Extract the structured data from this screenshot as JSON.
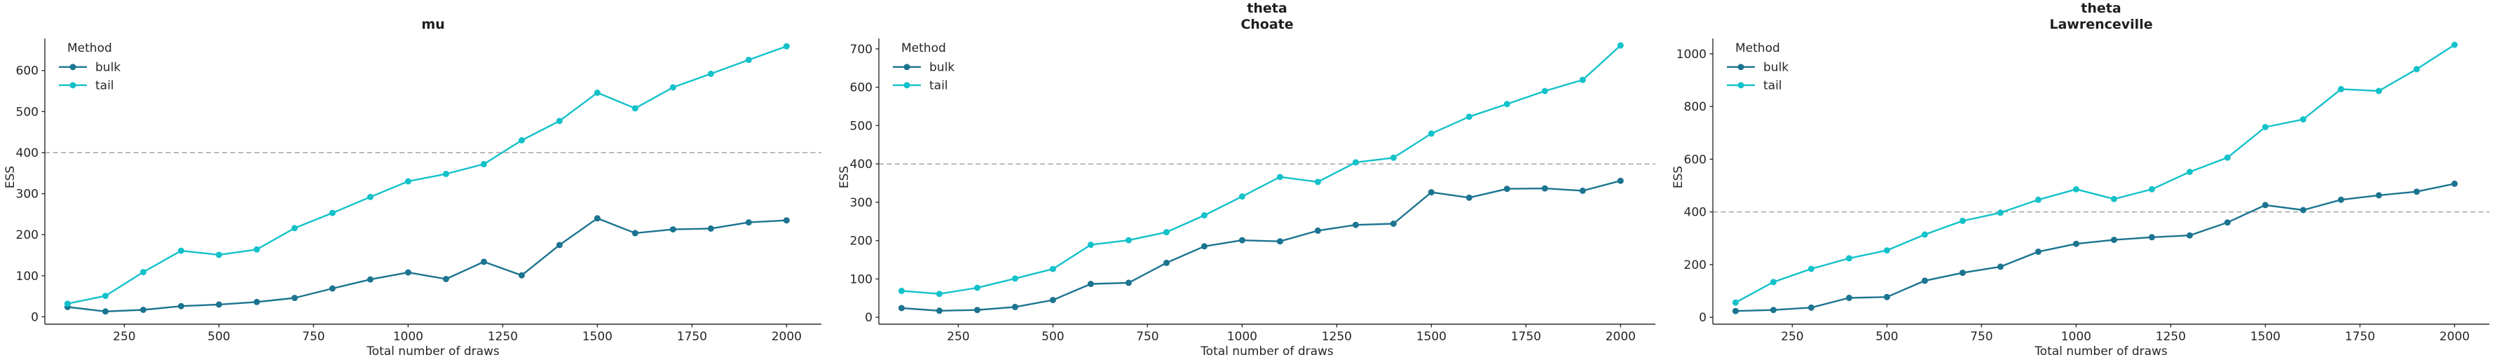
{
  "figure": {
    "xlabel": "Total number of draws",
    "ylabel": "ESS",
    "legend": {
      "title": "Method",
      "entries": [
        {
          "name": "bulk",
          "color": "#1b7490"
        },
        {
          "name": "tail",
          "color": "#13c1c9"
        }
      ]
    },
    "refline_y": 400,
    "colors": {
      "bulk": "#1b7490",
      "tail": "#13c1c9",
      "refline": "#a3a3a3",
      "spine": "#2e2e2e",
      "text": "#262626",
      "title": "#1f1f1f"
    }
  },
  "chart_data": [
    {
      "type": "line",
      "title": "mu",
      "title_lines": [
        "mu"
      ],
      "xlabel": "Total number of draws",
      "ylabel": "ESS",
      "legend_title": "Method",
      "legend_position": "upper left",
      "grid": false,
      "refline_y": 400,
      "x": [
        100,
        200,
        300,
        400,
        500,
        600,
        700,
        800,
        900,
        1000,
        1100,
        1200,
        1300,
        1400,
        1500,
        1600,
        1700,
        1800,
        1900,
        2000
      ],
      "series": [
        {
          "name": "bulk",
          "values": [
            24,
            13,
            17,
            26,
            30,
            36,
            46,
            69,
            91,
            108,
            92,
            134,
            101,
            175,
            240,
            204,
            213,
            215,
            230,
            235
          ]
        },
        {
          "name": "tail",
          "values": [
            32,
            51,
            109,
            161,
            151,
            164,
            216,
            253,
            292,
            330,
            348,
            372,
            430,
            477,
            546,
            508,
            559,
            592,
            626,
            659
          ]
        }
      ],
      "xticks": [
        250,
        500,
        750,
        1000,
        1250,
        1500,
        1750,
        2000
      ],
      "yticks": [
        0,
        100,
        200,
        300,
        400,
        500,
        600
      ],
      "xlim": [
        40,
        2092
      ],
      "ylim": [
        -18,
        678
      ]
    },
    {
      "type": "line",
      "title": "theta\nChoate",
      "title_lines": [
        "theta",
        "Choate"
      ],
      "xlabel": "Total number of draws",
      "ylabel": "ESS",
      "legend_title": "Method",
      "legend_position": "upper left",
      "grid": false,
      "refline_y": 400,
      "x": [
        100,
        200,
        300,
        400,
        500,
        600,
        700,
        800,
        900,
        1000,
        1100,
        1200,
        1300,
        1400,
        1500,
        1600,
        1700,
        1800,
        1900,
        2000
      ],
      "series": [
        {
          "name": "bulk",
          "values": [
            24,
            17,
            19,
            27,
            45,
            87,
            90,
            142,
            185,
            201,
            198,
            226,
            241,
            244,
            326,
            312,
            335,
            336,
            330,
            356
          ]
        },
        {
          "name": "tail",
          "values": [
            69,
            61,
            77,
            101,
            126,
            189,
            201,
            222,
            266,
            315,
            366,
            353,
            404,
            416,
            479,
            523,
            556,
            590,
            619,
            709
          ]
        }
      ],
      "xticks": [
        250,
        500,
        750,
        1000,
        1250,
        1500,
        1750,
        2000
      ],
      "yticks": [
        0,
        100,
        200,
        300,
        400,
        500,
        600,
        700
      ],
      "xlim": [
        40,
        2092
      ],
      "ylim": [
        -18,
        727
      ]
    },
    {
      "type": "line",
      "title": "theta\nLawrenceville",
      "title_lines": [
        "theta",
        "Lawrenceville"
      ],
      "xlabel": "Total number of draws",
      "ylabel": "ESS",
      "legend_title": "Method",
      "legend_position": "upper left",
      "grid": false,
      "refline_y": 400,
      "x": [
        100,
        200,
        300,
        400,
        500,
        600,
        700,
        800,
        900,
        1000,
        1100,
        1200,
        1300,
        1400,
        1500,
        1600,
        1700,
        1800,
        1900,
        2000
      ],
      "series": [
        {
          "name": "bulk",
          "values": [
            24,
            28,
            37,
            74,
            77,
            139,
            169,
            192,
            249,
            279,
            294,
            304,
            311,
            360,
            426,
            407,
            446,
            463,
            477,
            507
          ]
        },
        {
          "name": "tail",
          "values": [
            56,
            134,
            184,
            224,
            254,
            314,
            366,
            397,
            446,
            486,
            449,
            486,
            552,
            606,
            722,
            751,
            866,
            859,
            942,
            1034
          ]
        }
      ],
      "xticks": [
        250,
        500,
        750,
        1000,
        1250,
        1500,
        1750,
        2000
      ],
      "yticks": [
        0,
        200,
        400,
        600,
        800,
        1000
      ],
      "xlim": [
        40,
        2092
      ],
      "ylim": [
        -26,
        1058
      ]
    }
  ]
}
